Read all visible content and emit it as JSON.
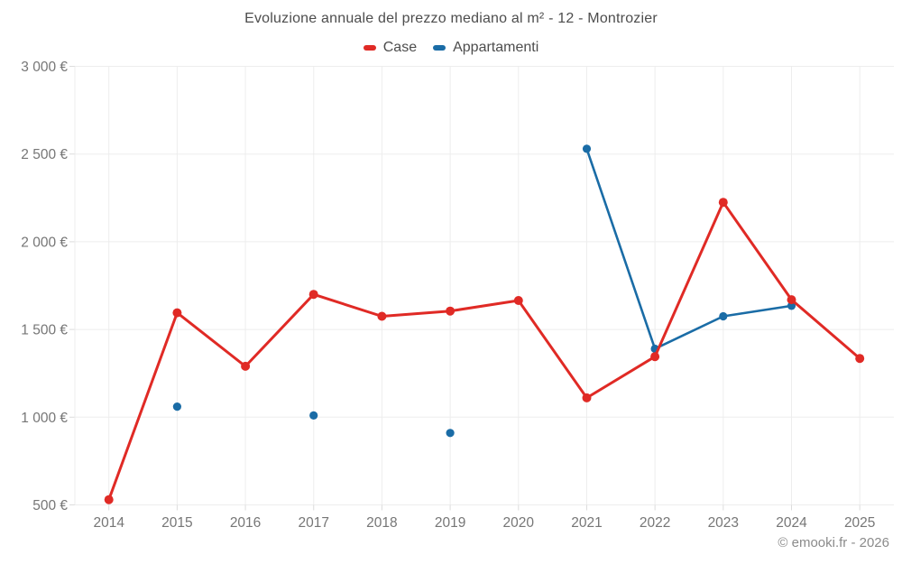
{
  "title": "Evoluzione annuale del prezzo mediano al m² - 12 - Montrozier",
  "legend": [
    {
      "label": "Case",
      "color": "#e02a25"
    },
    {
      "label": "Appartamenti",
      "color": "#1a6ca6"
    }
  ],
  "copyright": "© emooki.fr - 2026",
  "chart_data": {
    "type": "line",
    "title": "Evoluzione annuale del prezzo mediano al m² - 12 - Montrozier",
    "x": [
      2014,
      2015,
      2016,
      2017,
      2018,
      2019,
      2020,
      2021,
      2022,
      2023,
      2024,
      2025
    ],
    "series": [
      {
        "name": "Case",
        "color": "#e02a25",
        "values": [
          530,
          1595,
          1290,
          1700,
          1575,
          1605,
          1665,
          1110,
          1345,
          2225,
          1670,
          1335
        ]
      },
      {
        "name": "Appartamenti",
        "color": "#1a6ca6",
        "values": [
          null,
          1060,
          null,
          1010,
          null,
          910,
          null,
          2530,
          1390,
          1575,
          1635,
          null
        ]
      }
    ],
    "xlabel": "",
    "ylabel": "",
    "ylim": [
      500,
      3000
    ],
    "yticks": [
      500,
      1000,
      1500,
      2000,
      2500,
      3000
    ],
    "ytick_labels": [
      "500 €",
      "1 000 €",
      "1 500 €",
      "2 000 €",
      "2 500 €",
      "3 000 €"
    ],
    "grid": true,
    "legend_position": "top"
  }
}
